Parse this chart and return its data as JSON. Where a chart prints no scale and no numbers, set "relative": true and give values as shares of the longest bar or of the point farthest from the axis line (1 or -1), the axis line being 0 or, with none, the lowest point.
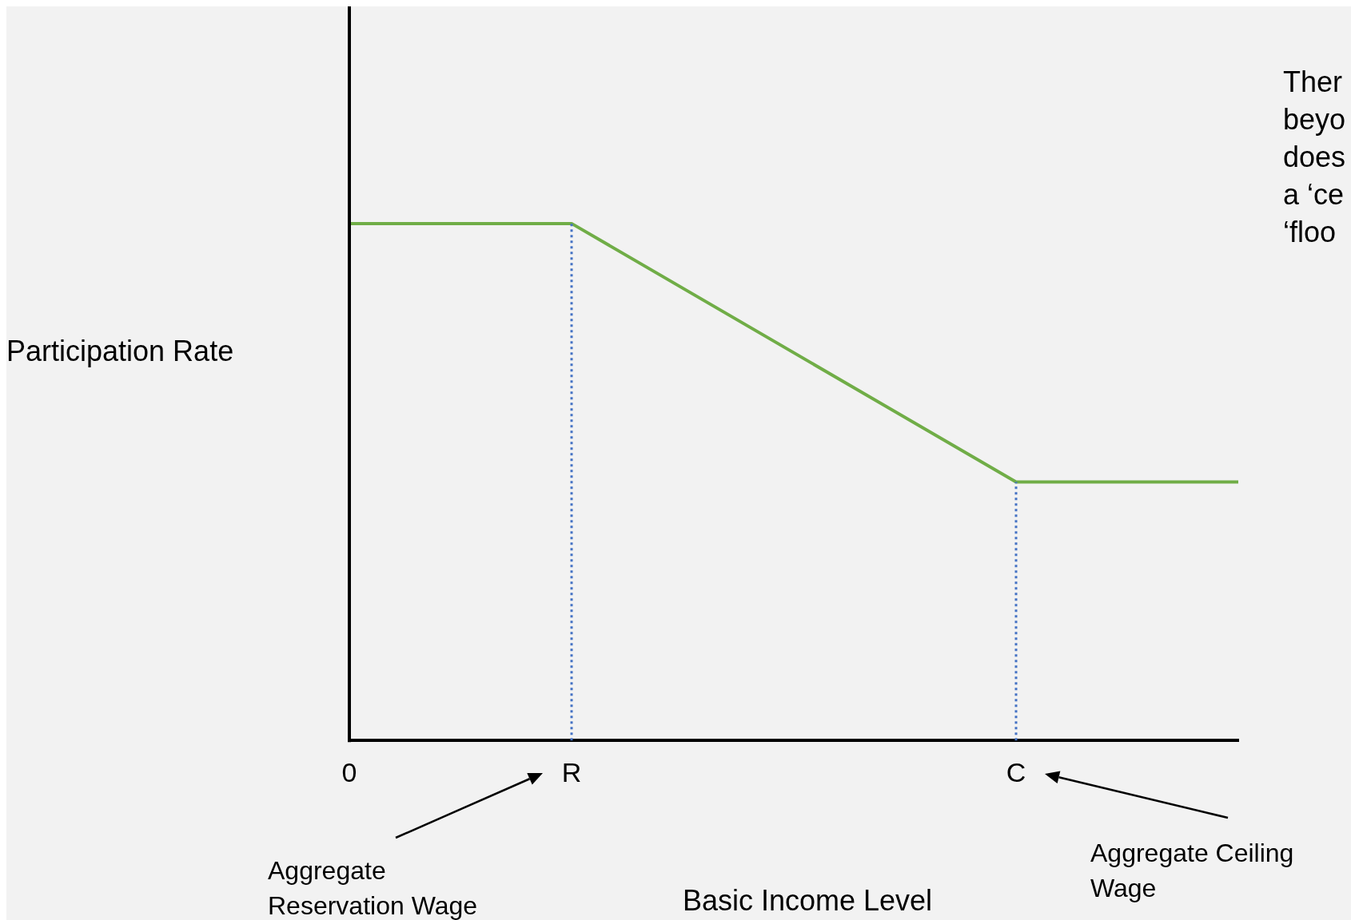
{
  "chart_data": {
    "type": "line",
    "xlabel": "Basic Income Level",
    "ylabel": "Participation Rate",
    "relative": true,
    "categories": [
      "0",
      null,
      null,
      null,
      null,
      "R",
      null,
      null,
      null,
      null,
      null,
      null,
      null,
      null,
      null,
      "C",
      null,
      null,
      null,
      null,
      null
    ],
    "series": [
      {
        "color": "#70ad47",
        "values": [
          1,
          null,
          null,
          null,
          null,
          1,
          null,
          null,
          null,
          null,
          null,
          null,
          null,
          null,
          null,
          0.5,
          null,
          null,
          null,
          null,
          0.5
        ]
      }
    ],
    "ref_lines": [
      {
        "axis": "x",
        "value": "R",
        "color": "#4472c4",
        "line_style": "dotted"
      },
      {
        "axis": "x",
        "value": "C",
        "color": "#4472c4",
        "line_style": "dotted"
      }
    ],
    "annotations": [
      "Aggregate\nReservation Wage",
      "Aggregate Ceiling\nWage",
      "Ther\nbeyo\ndoes\na ‘ce\n‘floo"
    ]
  }
}
